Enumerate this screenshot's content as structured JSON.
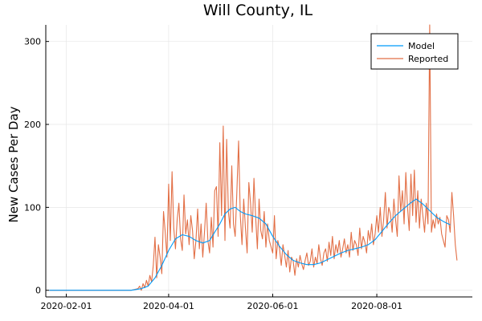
{
  "chart_data": {
    "type": "line",
    "title": "Will County, IL",
    "xlabel": "",
    "ylabel": "New Cases Per Day",
    "x_ticks": [
      "2020-02-01",
      "2020-04-01",
      "2020-06-01",
      "2020-08-01"
    ],
    "y_ticks": [
      0,
      100,
      200,
      300
    ],
    "xlim": [
      "2020-01-20",
      "2020-09-26"
    ],
    "ylim": [
      -8,
      320
    ],
    "grid": true,
    "legend_position": "top-right",
    "colors": {
      "model": "#009af9",
      "reported": "#e26f46"
    },
    "series": [
      {
        "name": "Model",
        "points": [
          [
            "2020-01-22",
            0
          ],
          [
            "2020-03-10",
            0
          ],
          [
            "2020-03-16",
            2
          ],
          [
            "2020-03-20",
            5
          ],
          [
            "2020-03-24",
            15
          ],
          [
            "2020-03-28",
            30
          ],
          [
            "2020-04-01",
            48
          ],
          [
            "2020-04-05",
            62
          ],
          [
            "2020-04-09",
            67
          ],
          [
            "2020-04-13",
            65
          ],
          [
            "2020-04-17",
            60
          ],
          [
            "2020-04-21",
            57
          ],
          [
            "2020-04-25",
            60
          ],
          [
            "2020-04-28",
            70
          ],
          [
            "2020-05-01",
            80
          ],
          [
            "2020-05-04",
            92
          ],
          [
            "2020-05-07",
            98
          ],
          [
            "2020-05-10",
            100
          ],
          [
            "2020-05-13",
            95
          ],
          [
            "2020-05-16",
            92
          ],
          [
            "2020-05-20",
            90
          ],
          [
            "2020-05-24",
            87
          ],
          [
            "2020-05-28",
            80
          ],
          [
            "2020-06-01",
            65
          ],
          [
            "2020-06-05",
            53
          ],
          [
            "2020-06-09",
            43
          ],
          [
            "2020-06-13",
            36
          ],
          [
            "2020-06-17",
            33
          ],
          [
            "2020-06-21",
            31
          ],
          [
            "2020-06-25",
            31
          ],
          [
            "2020-06-29",
            33
          ],
          [
            "2020-07-03",
            37
          ],
          [
            "2020-07-07",
            41
          ],
          [
            "2020-07-11",
            45
          ],
          [
            "2020-07-15",
            48
          ],
          [
            "2020-07-19",
            50
          ],
          [
            "2020-07-23",
            52
          ],
          [
            "2020-07-27",
            55
          ],
          [
            "2020-07-31",
            61
          ],
          [
            "2020-08-04",
            71
          ],
          [
            "2020-08-08",
            81
          ],
          [
            "2020-08-12",
            90
          ],
          [
            "2020-08-16",
            97
          ],
          [
            "2020-08-20",
            104
          ],
          [
            "2020-08-24",
            110
          ],
          [
            "2020-08-28",
            104
          ],
          [
            "2020-09-01",
            96
          ],
          [
            "2020-09-05",
            88
          ],
          [
            "2020-09-09",
            83
          ],
          [
            "2020-09-13",
            79
          ]
        ]
      },
      {
        "name": "Reported",
        "points": [
          [
            "2020-01-22",
            0
          ],
          [
            "2020-03-10",
            0
          ],
          [
            "2020-03-14",
            2
          ],
          [
            "2020-03-15",
            5
          ],
          [
            "2020-03-16",
            0
          ],
          [
            "2020-03-17",
            8
          ],
          [
            "2020-03-18",
            3
          ],
          [
            "2020-03-19",
            12
          ],
          [
            "2020-03-20",
            5
          ],
          [
            "2020-03-21",
            18
          ],
          [
            "2020-03-22",
            10
          ],
          [
            "2020-03-23",
            30
          ],
          [
            "2020-03-24",
            64
          ],
          [
            "2020-03-25",
            15
          ],
          [
            "2020-03-26",
            55
          ],
          [
            "2020-03-27",
            40
          ],
          [
            "2020-03-28",
            20
          ],
          [
            "2020-03-29",
            95
          ],
          [
            "2020-03-30",
            70
          ],
          [
            "2020-03-31",
            40
          ],
          [
            "2020-04-01",
            128
          ],
          [
            "2020-04-02",
            60
          ],
          [
            "2020-04-03",
            143
          ],
          [
            "2020-04-04",
            75
          ],
          [
            "2020-04-05",
            50
          ],
          [
            "2020-04-06",
            85
          ],
          [
            "2020-04-07",
            105
          ],
          [
            "2020-04-08",
            62
          ],
          [
            "2020-04-09",
            48
          ],
          [
            "2020-04-10",
            115
          ],
          [
            "2020-04-11",
            68
          ],
          [
            "2020-04-12",
            85
          ],
          [
            "2020-04-13",
            55
          ],
          [
            "2020-04-14",
            90
          ],
          [
            "2020-04-15",
            72
          ],
          [
            "2020-04-16",
            38
          ],
          [
            "2020-04-17",
            60
          ],
          [
            "2020-04-18",
            98
          ],
          [
            "2020-04-19",
            50
          ],
          [
            "2020-04-20",
            80
          ],
          [
            "2020-04-21",
            40
          ],
          [
            "2020-04-22",
            70
          ],
          [
            "2020-04-23",
            105
          ],
          [
            "2020-04-24",
            60
          ],
          [
            "2020-04-25",
            45
          ],
          [
            "2020-04-26",
            88
          ],
          [
            "2020-04-27",
            52
          ],
          [
            "2020-04-28",
            120
          ],
          [
            "2020-04-29",
            125
          ],
          [
            "2020-04-30",
            65
          ],
          [
            "2020-05-01",
            178
          ],
          [
            "2020-05-02",
            90
          ],
          [
            "2020-05-03",
            198
          ],
          [
            "2020-05-04",
            60
          ],
          [
            "2020-05-05",
            182
          ],
          [
            "2020-05-06",
            95
          ],
          [
            "2020-05-07",
            75
          ],
          [
            "2020-05-08",
            150
          ],
          [
            "2020-05-09",
            80
          ],
          [
            "2020-05-10",
            65
          ],
          [
            "2020-05-11",
            120
          ],
          [
            "2020-05-12",
            180
          ],
          [
            "2020-05-13",
            90
          ],
          [
            "2020-05-14",
            55
          ],
          [
            "2020-05-15",
            110
          ],
          [
            "2020-05-16",
            75
          ],
          [
            "2020-05-17",
            45
          ],
          [
            "2020-05-18",
            130
          ],
          [
            "2020-05-19",
            105
          ],
          [
            "2020-05-20",
            70
          ],
          [
            "2020-05-21",
            135
          ],
          [
            "2020-05-22",
            88
          ],
          [
            "2020-05-23",
            50
          ],
          [
            "2020-05-24",
            110
          ],
          [
            "2020-05-25",
            72
          ],
          [
            "2020-05-26",
            62
          ],
          [
            "2020-05-27",
            95
          ],
          [
            "2020-05-28",
            52
          ],
          [
            "2020-05-29",
            80
          ],
          [
            "2020-05-30",
            60
          ],
          [
            "2020-06-01",
            45
          ],
          [
            "2020-06-02",
            90
          ],
          [
            "2020-06-03",
            38
          ],
          [
            "2020-06-04",
            60
          ],
          [
            "2020-06-05",
            50
          ],
          [
            "2020-06-06",
            30
          ],
          [
            "2020-06-07",
            55
          ],
          [
            "2020-06-08",
            42
          ],
          [
            "2020-06-09",
            28
          ],
          [
            "2020-06-10",
            48
          ],
          [
            "2020-06-11",
            22
          ],
          [
            "2020-06-12",
            40
          ],
          [
            "2020-06-13",
            35
          ],
          [
            "2020-06-14",
            18
          ],
          [
            "2020-06-15",
            38
          ],
          [
            "2020-06-16",
            28
          ],
          [
            "2020-06-17",
            42
          ],
          [
            "2020-06-18",
            32
          ],
          [
            "2020-06-19",
            25
          ],
          [
            "2020-06-20",
            36
          ],
          [
            "2020-06-21",
            45
          ],
          [
            "2020-06-22",
            30
          ],
          [
            "2020-06-23",
            35
          ],
          [
            "2020-06-24",
            50
          ],
          [
            "2020-06-25",
            28
          ],
          [
            "2020-06-26",
            40
          ],
          [
            "2020-06-27",
            32
          ],
          [
            "2020-06-28",
            55
          ],
          [
            "2020-06-29",
            38
          ],
          [
            "2020-06-30",
            30
          ],
          [
            "2020-07-01",
            45
          ],
          [
            "2020-07-02",
            50
          ],
          [
            "2020-07-03",
            35
          ],
          [
            "2020-07-04",
            58
          ],
          [
            "2020-07-05",
            42
          ],
          [
            "2020-07-06",
            65
          ],
          [
            "2020-07-07",
            38
          ],
          [
            "2020-07-08",
            55
          ],
          [
            "2020-07-09",
            45
          ],
          [
            "2020-07-10",
            60
          ],
          [
            "2020-07-11",
            40
          ],
          [
            "2020-07-12",
            50
          ],
          [
            "2020-07-13",
            62
          ],
          [
            "2020-07-14",
            45
          ],
          [
            "2020-07-15",
            55
          ],
          [
            "2020-07-16",
            40
          ],
          [
            "2020-07-17",
            70
          ],
          [
            "2020-07-18",
            48
          ],
          [
            "2020-07-19",
            60
          ],
          [
            "2020-07-20",
            55
          ],
          [
            "2020-07-21",
            42
          ],
          [
            "2020-07-22",
            75
          ],
          [
            "2020-07-23",
            50
          ],
          [
            "2020-07-24",
            65
          ],
          [
            "2020-07-25",
            58
          ],
          [
            "2020-07-26",
            45
          ],
          [
            "2020-07-27",
            72
          ],
          [
            "2020-07-28",
            60
          ],
          [
            "2020-07-29",
            80
          ],
          [
            "2020-07-30",
            55
          ],
          [
            "2020-07-31",
            68
          ],
          [
            "2020-08-01",
            90
          ],
          [
            "2020-08-02",
            70
          ],
          [
            "2020-08-03",
            100
          ],
          [
            "2020-08-04",
            65
          ],
          [
            "2020-08-05",
            85
          ],
          [
            "2020-08-06",
            118
          ],
          [
            "2020-08-07",
            75
          ],
          [
            "2020-08-08",
            100
          ],
          [
            "2020-08-09",
            92
          ],
          [
            "2020-08-10",
            70
          ],
          [
            "2020-08-11",
            110
          ],
          [
            "2020-08-12",
            85
          ],
          [
            "2020-08-13",
            65
          ],
          [
            "2020-08-14",
            138
          ],
          [
            "2020-08-15",
            95
          ],
          [
            "2020-08-16",
            120
          ],
          [
            "2020-08-17",
            80
          ],
          [
            "2020-08-18",
            142
          ],
          [
            "2020-08-19",
            100
          ],
          [
            "2020-08-20",
            72
          ],
          [
            "2020-08-21",
            140
          ],
          [
            "2020-08-22",
            90
          ],
          [
            "2020-08-23",
            145
          ],
          [
            "2020-08-24",
            82
          ],
          [
            "2020-08-25",
            120
          ],
          [
            "2020-08-26",
            75
          ],
          [
            "2020-08-27",
            110
          ],
          [
            "2020-08-28",
            90
          ],
          [
            "2020-08-29",
            70
          ],
          [
            "2020-08-30",
            105
          ],
          [
            "2020-08-31",
            80
          ],
          [
            "2020-09-01",
            320
          ],
          [
            "2020-09-02",
            70
          ],
          [
            "2020-09-03",
            85
          ],
          [
            "2020-09-04",
            75
          ],
          [
            "2020-09-05",
            92
          ],
          [
            "2020-09-06",
            80
          ],
          [
            "2020-09-07",
            88
          ],
          [
            "2020-09-08",
            68
          ],
          [
            "2020-09-09",
            60
          ],
          [
            "2020-09-10",
            52
          ],
          [
            "2020-09-11",
            90
          ],
          [
            "2020-09-12",
            85
          ],
          [
            "2020-09-13",
            70
          ],
          [
            "2020-09-14",
            118
          ],
          [
            "2020-09-15",
            90
          ],
          [
            "2020-09-16",
            55
          ],
          [
            "2020-09-17",
            36
          ]
        ]
      }
    ]
  }
}
